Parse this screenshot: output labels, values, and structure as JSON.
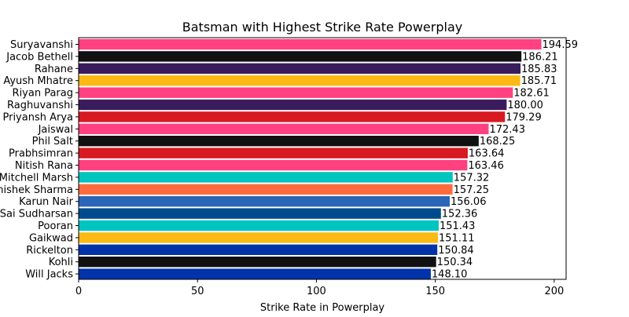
{
  "chart_data": {
    "type": "bar",
    "orientation": "horizontal",
    "title": "Batsman with Highest Strike Rate Powerplay",
    "xlabel": "Strike Rate in Powerplay",
    "ylabel": "",
    "xlim": [
      0,
      205
    ],
    "xticks": [
      0,
      50,
      100,
      150,
      200
    ],
    "grid": false,
    "categories": [
      "Suryavanshi",
      "Jacob Bethell",
      "Rahane",
      "Ayush Mhatre",
      "Riyan Parag",
      "Raghuvanshi",
      "Priyansh Arya",
      "Jaiswal",
      "Phil Salt",
      "Prabhsimran",
      "Nitish Rana",
      "Mitchell Marsh",
      "Abhishek Sharma",
      "Karun Nair",
      "Sai Sudharsan",
      "Pooran",
      "Gaikwad",
      "Rickelton",
      "Kohli",
      "Will Jacks"
    ],
    "values": [
      194.59,
      186.21,
      185.83,
      185.71,
      182.61,
      180.0,
      179.29,
      172.43,
      168.25,
      163.64,
      163.46,
      157.32,
      157.25,
      156.06,
      152.36,
      151.43,
      151.11,
      150.84,
      150.34,
      148.1
    ],
    "value_labels": [
      "194.59",
      "186.21",
      "185.83",
      "185.71",
      "182.61",
      "180.00",
      "179.29",
      "172.43",
      "168.25",
      "163.64",
      "163.46",
      "157.32",
      "157.25",
      "156.06",
      "152.36",
      "151.43",
      "151.11",
      "150.84",
      "150.34",
      "148.10"
    ],
    "colors": [
      "#FF4081",
      "#111111",
      "#3A1C5C",
      "#FDB913",
      "#FF4081",
      "#3A1C5C",
      "#D71920",
      "#FF4081",
      "#111111",
      "#D71920",
      "#FF4081",
      "#00C4C0",
      "#FF6B3D",
      "#2B65B8",
      "#004B8D",
      "#00C4C0",
      "#FDB913",
      "#0033AA",
      "#111111",
      "#0033AA"
    ]
  }
}
